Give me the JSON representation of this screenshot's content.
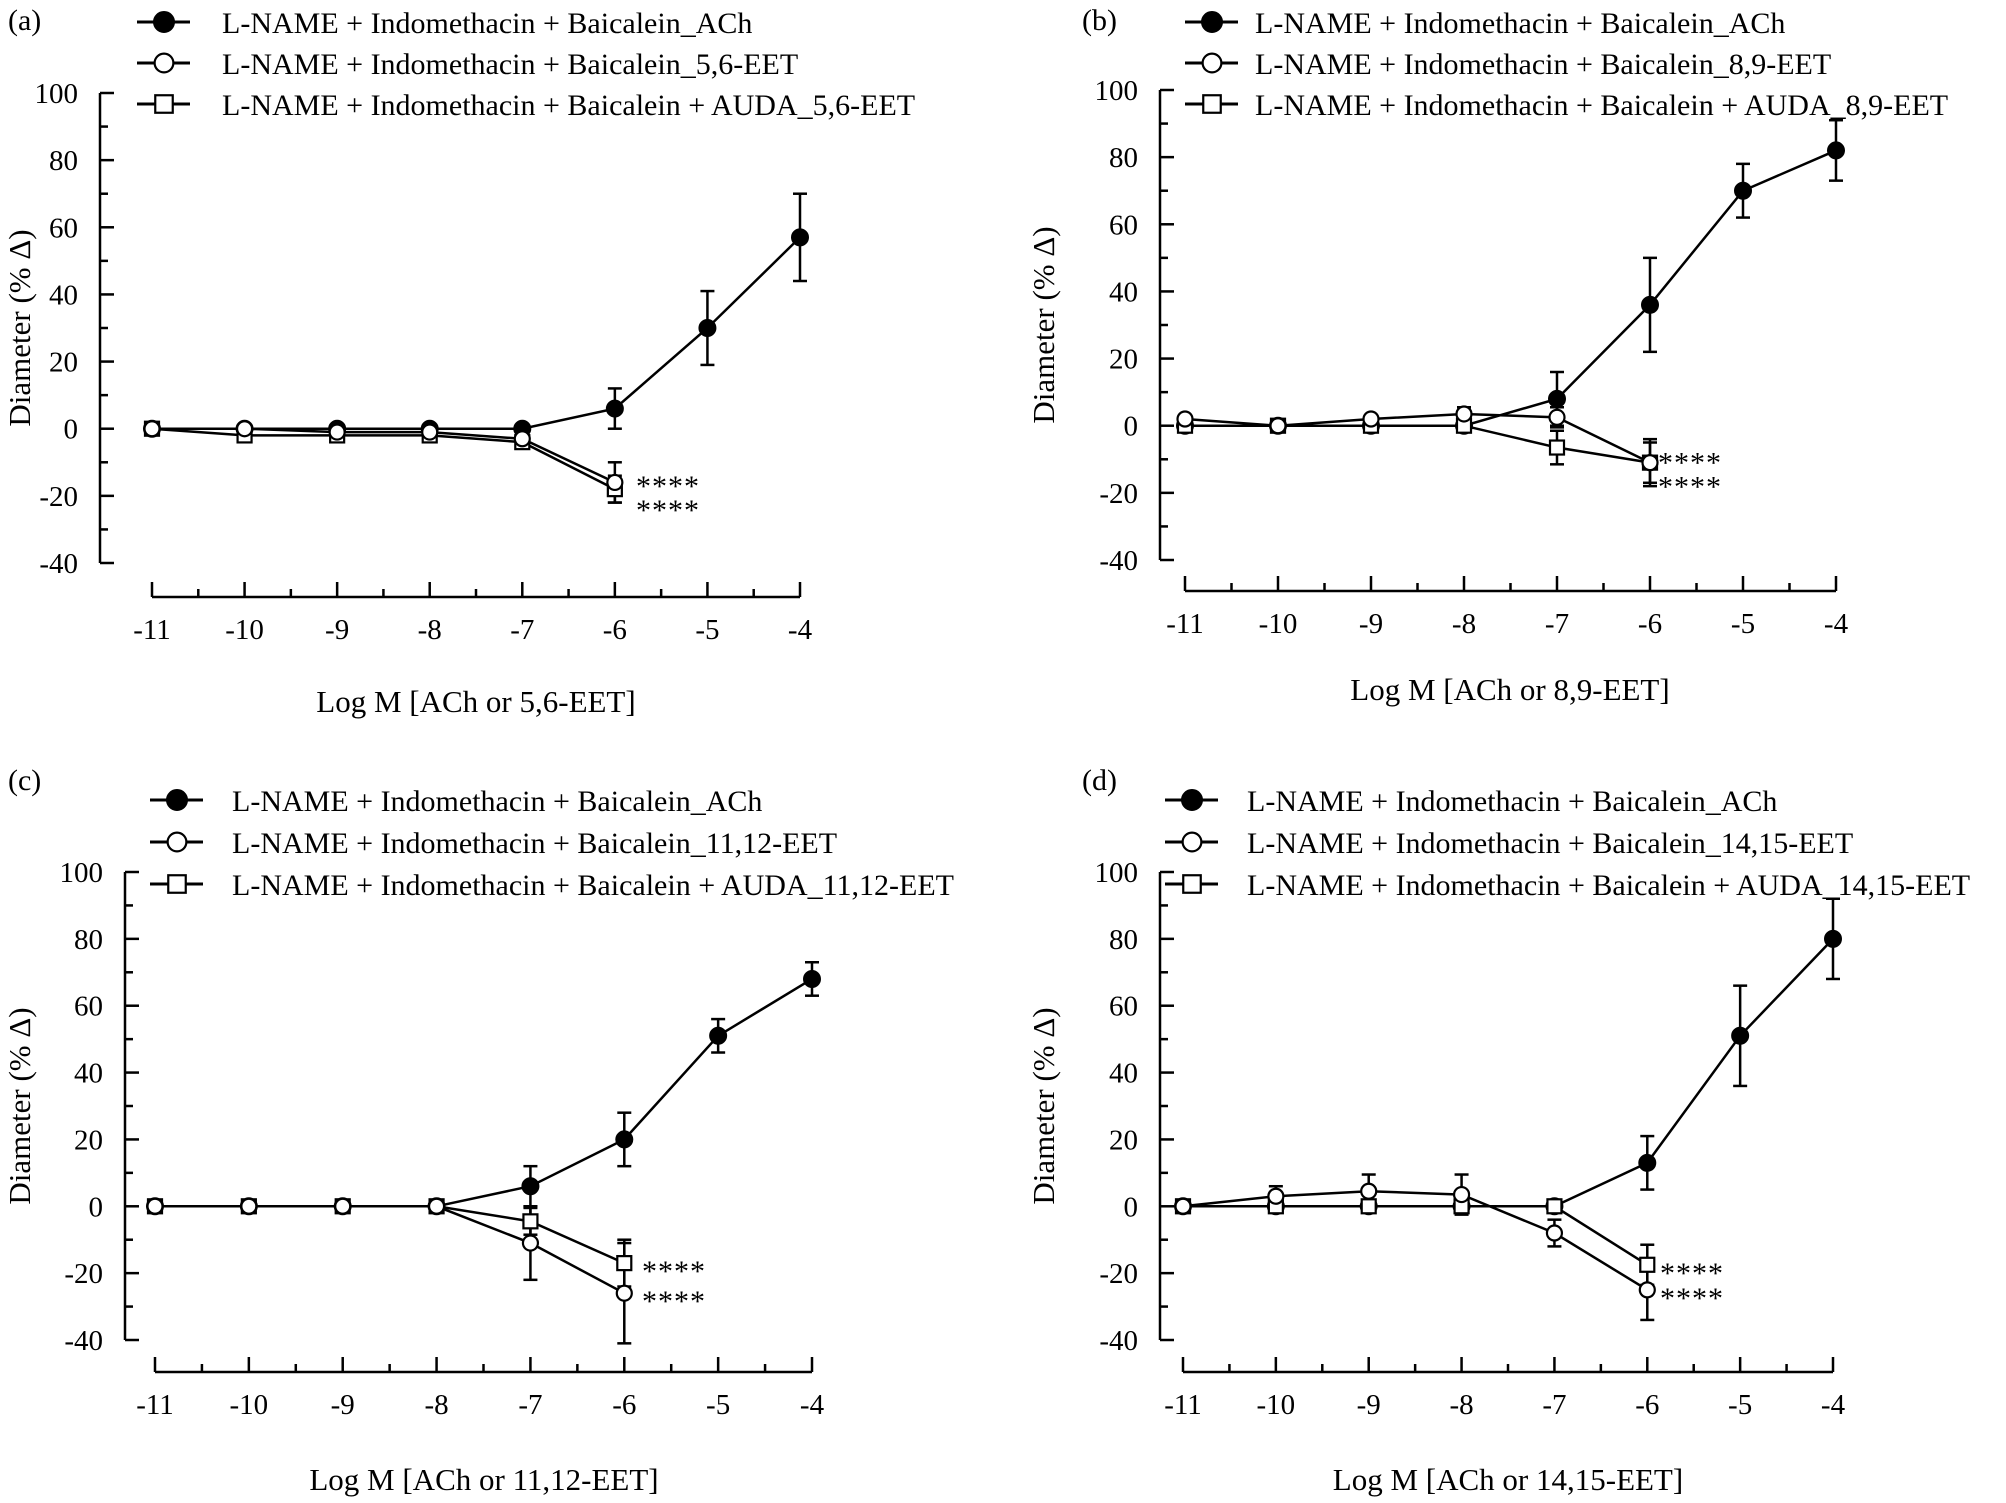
{
  "chart_data": [
    {
      "panel": "(a)",
      "type": "line",
      "xlabel": "Log M [ACh or 5,6-EET]",
      "ylabel": "Diameter (% Δ)",
      "xlim": [
        -11,
        -4
      ],
      "ylim": [
        -40,
        100
      ],
      "xticks": [
        -11,
        -10,
        -9,
        -8,
        -7,
        -6,
        -5,
        -4
      ],
      "yticks": [
        -40,
        -20,
        0,
        20,
        40,
        60,
        80,
        100
      ],
      "series": [
        {
          "name": "L-NAME + Indomethacin + Baicalein_ACh",
          "marker": "filled-circle",
          "x": [
            -11,
            -10,
            -9,
            -8,
            -7,
            -6,
            -5,
            -4
          ],
          "y": [
            0,
            0,
            0,
            0,
            0,
            6,
            30,
            57
          ],
          "err": [
            0,
            0,
            0,
            0,
            0,
            6,
            11,
            13
          ]
        },
        {
          "name": "L-NAME + Indomethacin + Baicalein_5,6-EET",
          "marker": "open-circle",
          "x": [
            -11,
            -10,
            -9,
            -8,
            -7,
            -6
          ],
          "y": [
            0,
            0,
            -1,
            -1,
            -3,
            -16
          ],
          "err": [
            0,
            0,
            0,
            0,
            1,
            6
          ]
        },
        {
          "name": "L-NAME + Indomethacin + Baicalein + AUDA_5,6-EET",
          "marker": "open-square",
          "x": [
            -11,
            -10,
            -9,
            -8,
            -7,
            -6
          ],
          "y": [
            0,
            -2,
            -2,
            -2,
            -4,
            -18
          ],
          "err": [
            0,
            0,
            0,
            0,
            1,
            4
          ]
        }
      ],
      "significance": [
        "****",
        "****"
      ]
    },
    {
      "panel": "(b)",
      "type": "line",
      "xlabel": "Log M [ACh or 8,9-EET]",
      "ylabel": "Diameter (% Δ)",
      "xlim": [
        -11,
        -4
      ],
      "ylim": [
        -40,
        100
      ],
      "xticks": [
        -11,
        -10,
        -9,
        -8,
        -7,
        -6,
        -5,
        -4
      ],
      "yticks": [
        -40,
        -20,
        0,
        20,
        40,
        60,
        80,
        100
      ],
      "series": [
        {
          "name": "L-NAME + Indomethacin + Baicalein_ACh",
          "marker": "filled-circle",
          "x": [
            -11,
            -10,
            -9,
            -8,
            -7,
            -6,
            -5,
            -4
          ],
          "y": [
            0,
            0,
            0,
            0,
            8,
            36,
            70,
            82
          ],
          "err": [
            0,
            0,
            0,
            0,
            8,
            14,
            8,
            9
          ]
        },
        {
          "name": "L-NAME + Indomethacin + Baicalein_8,9-EET",
          "marker": "open-circle",
          "x": [
            -11,
            -10,
            -9,
            -8,
            -7,
            -6
          ],
          "y": [
            2,
            0,
            2,
            3.5,
            2.5,
            -11
          ],
          "err": [
            0,
            0,
            0,
            2,
            3,
            6
          ]
        },
        {
          "name": "L-NAME + Indomethacin + Baicalein + AUDA_8,9-EET",
          "marker": "open-square",
          "x": [
            -11,
            -10,
            -9,
            -8,
            -7,
            -6
          ],
          "y": [
            0,
            0,
            0,
            0,
            -6.5,
            -11
          ],
          "err": [
            0,
            0,
            0,
            0,
            5,
            7
          ]
        }
      ],
      "significance": [
        "****",
        "****"
      ]
    },
    {
      "panel": "(c)",
      "type": "line",
      "xlabel": "Log M [ACh or 11,12-EET]",
      "ylabel": "Diameter (% Δ)",
      "xlim": [
        -11,
        -4
      ],
      "ylim": [
        -40,
        100
      ],
      "xticks": [
        -11,
        -10,
        -9,
        -8,
        -7,
        -6,
        -5,
        -4
      ],
      "yticks": [
        -40,
        -20,
        0,
        20,
        40,
        60,
        80,
        100
      ],
      "series": [
        {
          "name": "L-NAME + Indomethacin + Baicalein_ACh",
          "marker": "filled-circle",
          "x": [
            -11,
            -10,
            -9,
            -8,
            -7,
            -6,
            -5,
            -4
          ],
          "y": [
            0,
            0,
            0,
            0,
            6,
            20,
            51,
            68
          ],
          "err": [
            0,
            0,
            0,
            0,
            6,
            8,
            5,
            5
          ]
        },
        {
          "name": "L-NAME + Indomethacin + Baicalein_11,12-EET",
          "marker": "open-circle",
          "x": [
            -11,
            -10,
            -9,
            -8,
            -7,
            -6
          ],
          "y": [
            0,
            0,
            0,
            0,
            -11,
            -26
          ],
          "err": [
            0,
            0,
            0,
            0,
            11,
            15
          ]
        },
        {
          "name": "L-NAME + Indomethacin + Baicalein + AUDA_11,12-EET",
          "marker": "open-square",
          "x": [
            -11,
            -10,
            -9,
            -8,
            -7,
            -6
          ],
          "y": [
            0,
            0,
            0,
            0,
            -4.5,
            -17
          ],
          "err": [
            0,
            0,
            0,
            0,
            4,
            7
          ]
        }
      ],
      "significance": [
        "****",
        "****"
      ]
    },
    {
      "panel": "(d)",
      "type": "line",
      "xlabel": "Log M [ACh or 14,15-EET]",
      "ylabel": "Diameter (% Δ)",
      "xlim": [
        -11,
        -4
      ],
      "ylim": [
        -40,
        100
      ],
      "xticks": [
        -11,
        -10,
        -9,
        -8,
        -7,
        -6,
        -5,
        -4
      ],
      "yticks": [
        -40,
        -20,
        0,
        20,
        40,
        60,
        80,
        100
      ],
      "series": [
        {
          "name": "L-NAME + Indomethacin + Baicalein_ACh",
          "marker": "filled-circle",
          "x": [
            -11,
            -10,
            -9,
            -8,
            -7,
            -6,
            -5,
            -4
          ],
          "y": [
            0,
            0,
            0,
            0,
            0,
            13,
            51,
            80
          ],
          "err": [
            0,
            0,
            0,
            0,
            0,
            8,
            15,
            12
          ]
        },
        {
          "name": "L-NAME + Indomethacin + Baicalein_14,15-EET",
          "marker": "open-circle",
          "x": [
            -11,
            -10,
            -9,
            -8,
            -7,
            -6
          ],
          "y": [
            0,
            3,
            4.5,
            3.5,
            -8,
            -25
          ],
          "err": [
            0,
            3,
            5,
            6,
            4,
            9
          ]
        },
        {
          "name": "L-NAME + Indomethacin + Baicalein + AUDA_14,15-EET",
          "marker": "open-square",
          "x": [
            -11,
            -10,
            -9,
            -8,
            -7,
            -6
          ],
          "y": [
            0,
            0,
            0,
            0,
            0,
            -17.5
          ],
          "err": [
            0,
            0,
            0,
            0,
            0,
            6
          ]
        }
      ],
      "significance": [
        "****",
        "****"
      ]
    }
  ]
}
